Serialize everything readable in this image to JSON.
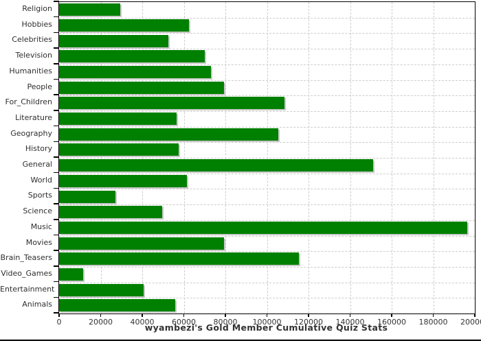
{
  "chart_data": {
    "type": "bar",
    "orientation": "horizontal",
    "title": "wyambezi's Gold Member Cumulative Quiz Stats",
    "categories": [
      "Religion",
      "Hobbies",
      "Celebrities",
      "Television",
      "Humanities",
      "People",
      "For_Children",
      "Literature",
      "Geography",
      "History",
      "General",
      "World",
      "Sports",
      "Science",
      "Music",
      "Movies",
      "Brain_Teasers",
      "Video_Games",
      "Entertainment",
      "Animals"
    ],
    "values": [
      29500,
      62500,
      52500,
      70000,
      73000,
      79500,
      108500,
      56500,
      105500,
      57500,
      151000,
      61500,
      27000,
      49500,
      196500,
      79500,
      115500,
      11500,
      40500,
      56000
    ],
    "xlim": [
      0,
      200000
    ],
    "x_tick_labels": [
      "0",
      "20000",
      "40000",
      "60000",
      "80000",
      "100000",
      "120000",
      "140000",
      "160000",
      "180000",
      "200000"
    ],
    "x_tick_step": 20000,
    "grid": "dashed-both-axes",
    "legend": "none",
    "bar_color": "#008000"
  },
  "colors": {
    "bar": "#008000",
    "bar_shadow": "#c8c8c8",
    "grid": "#cccccc",
    "axis": "#000000",
    "tick_text": "#333333",
    "category_text": "#2e2e2e",
    "title_text": "#333333",
    "background": "#ffffff"
  }
}
